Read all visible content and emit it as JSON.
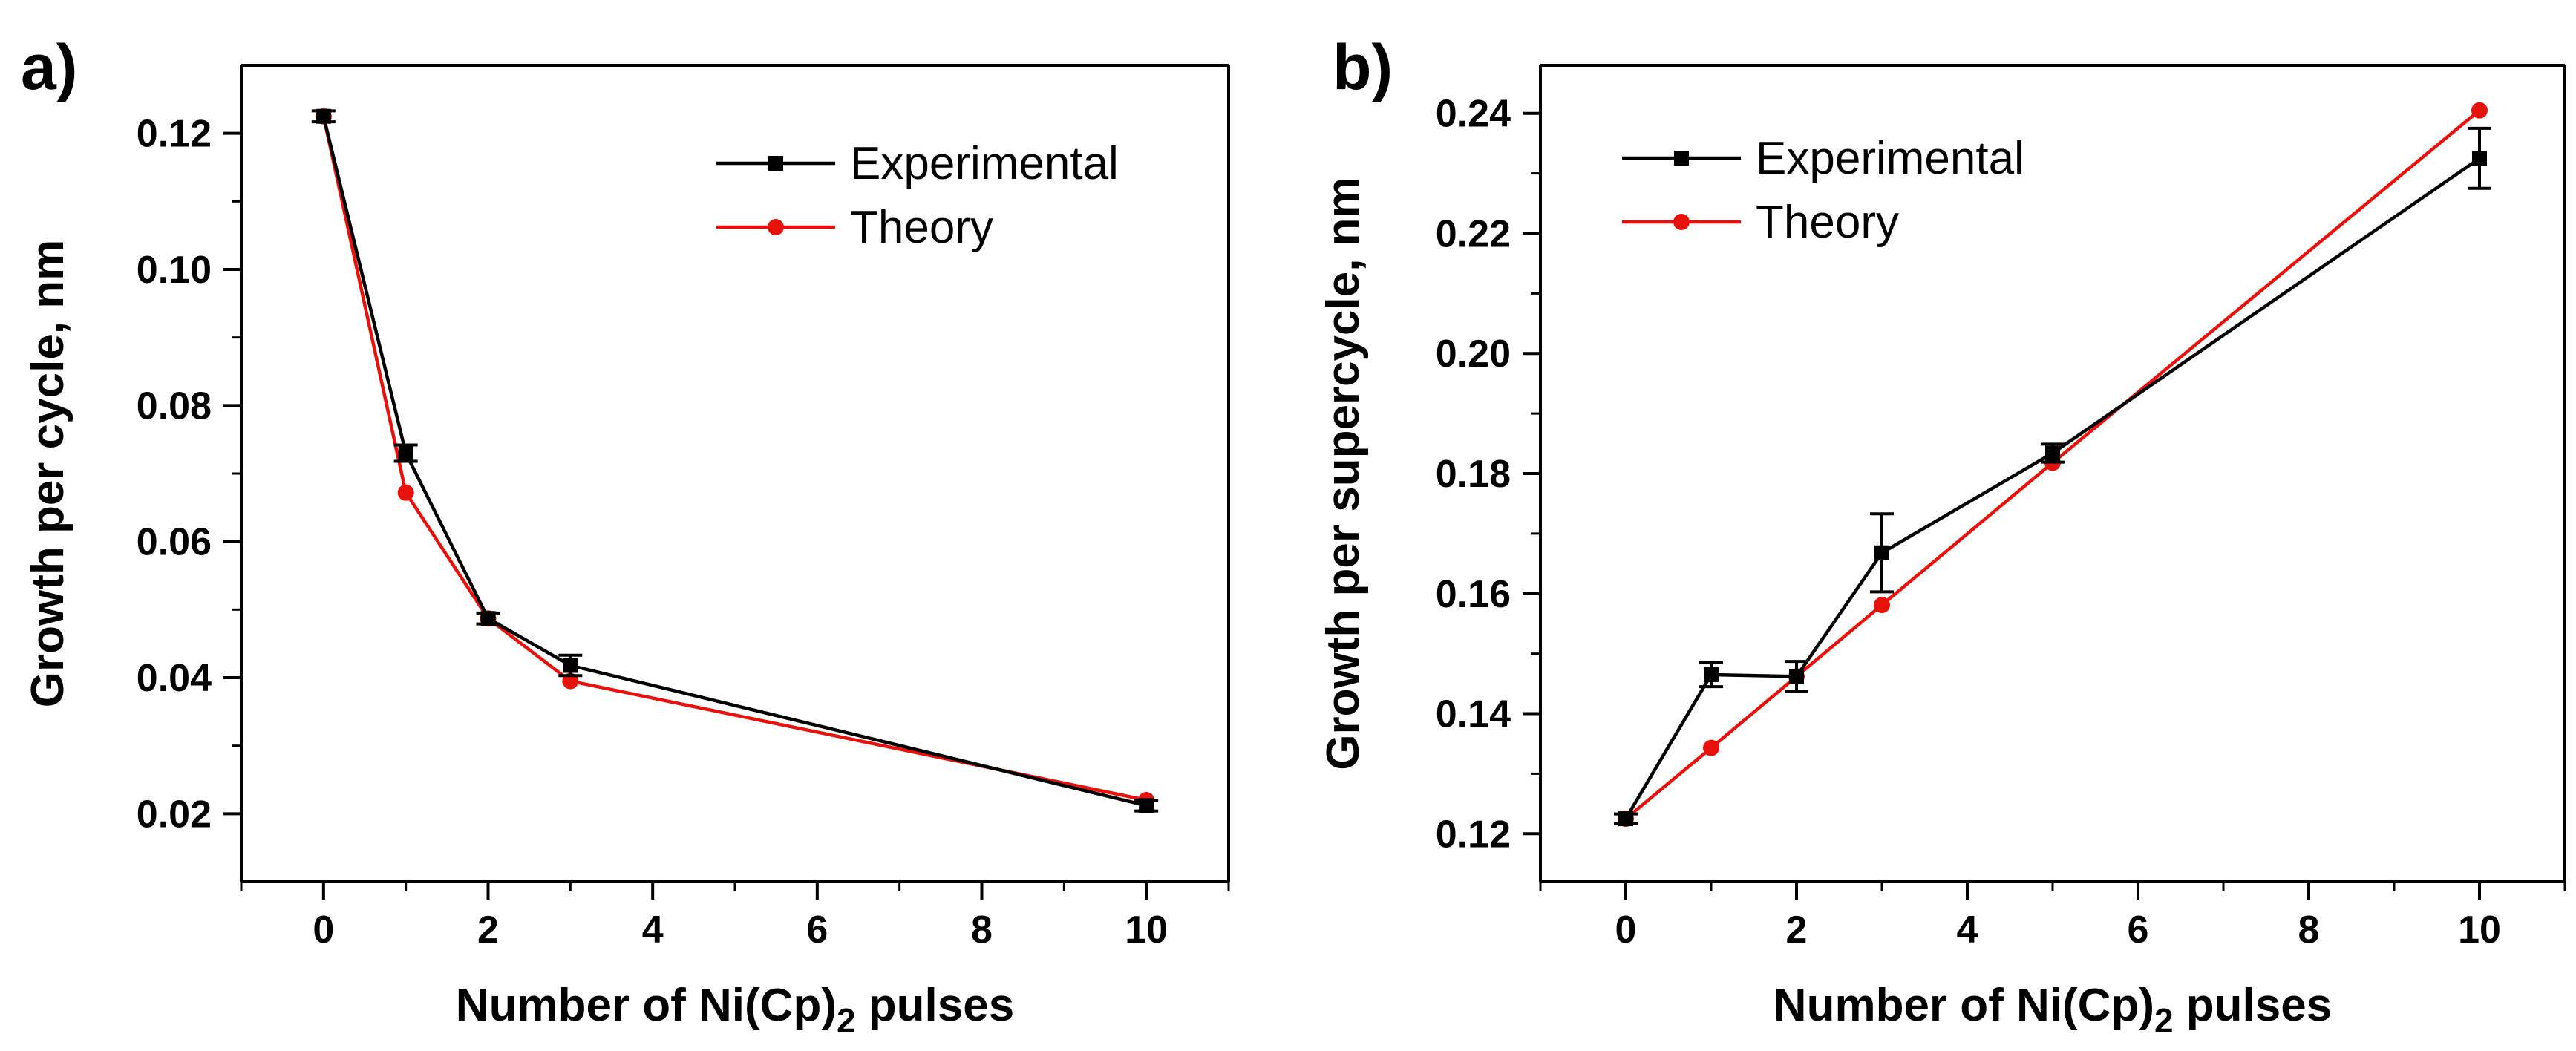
{
  "chart_data": [
    {
      "panel_label": "a)",
      "type": "line",
      "xlabel_prefix": "Number of Ni(Cp)",
      "xlabel_sub": "2",
      "xlabel_suffix": " pulses",
      "ylabel": "Growth per cycle, nm",
      "xlim": [
        -1,
        11
      ],
      "ylim": [
        0.01,
        0.13
      ],
      "x_ticks": [
        0,
        2,
        4,
        6,
        8,
        10
      ],
      "x_tick_labels": [
        "0",
        "2",
        "4",
        "6",
        "8",
        "10"
      ],
      "y_ticks": [
        0.02,
        0.04,
        0.06,
        0.08,
        0.1,
        0.12
      ],
      "y_tick_labels": [
        "0.02",
        "0.04",
        "0.06",
        "0.08",
        "0.10",
        "0.12"
      ],
      "grid": false,
      "legend_position": "top-right",
      "series": [
        {
          "name": "Experimental",
          "color": "#000000",
          "marker": "square",
          "x": [
            0,
            1,
            2,
            3,
            10
          ],
          "y": [
            0.1225,
            0.073,
            0.0487,
            0.0418,
            0.0212
          ],
          "err": [
            0.0008,
            0.0012,
            0.0008,
            0.0015,
            0.0008
          ]
        },
        {
          "name": "Theory",
          "color": "#e8120c",
          "marker": "circle",
          "x": [
            0,
            1,
            2,
            3,
            10
          ],
          "y": [
            0.1225,
            0.0672,
            0.0487,
            0.0395,
            0.022
          ]
        }
      ]
    },
    {
      "panel_label": "b)",
      "type": "line",
      "xlabel_prefix": "Number of Ni(Cp)",
      "xlabel_sub": "2",
      "xlabel_suffix": " pulses",
      "ylabel": "Growth per supercycle, nm",
      "xlim": [
        -1,
        11
      ],
      "ylim": [
        0.112,
        0.248
      ],
      "x_ticks": [
        0,
        2,
        4,
        6,
        8,
        10
      ],
      "x_tick_labels": [
        "0",
        "2",
        "4",
        "6",
        "8",
        "10"
      ],
      "y_ticks": [
        0.12,
        0.14,
        0.16,
        0.18,
        0.2,
        0.22,
        0.24
      ],
      "y_tick_labels": [
        "0.12",
        "0.14",
        "0.16",
        "0.18",
        "0.20",
        "0.22",
        "0.24"
      ],
      "grid": false,
      "legend_position": "top-left",
      "series": [
        {
          "name": "Experimental",
          "color": "#000000",
          "marker": "square",
          "x": [
            0,
            1,
            2,
            3,
            5,
            10
          ],
          "y": [
            0.1225,
            0.1465,
            0.1462,
            0.1668,
            0.1834,
            0.2325
          ],
          "err": [
            0.0008,
            0.002,
            0.0025,
            0.0065,
            0.0015,
            0.005
          ]
        },
        {
          "name": "Theory",
          "color": "#e8120c",
          "marker": "circle",
          "x": [
            0,
            1,
            2,
            3,
            5,
            10
          ],
          "y": [
            0.1225,
            0.1343,
            0.1462,
            0.1581,
            0.1818,
            0.2405
          ]
        }
      ]
    }
  ]
}
